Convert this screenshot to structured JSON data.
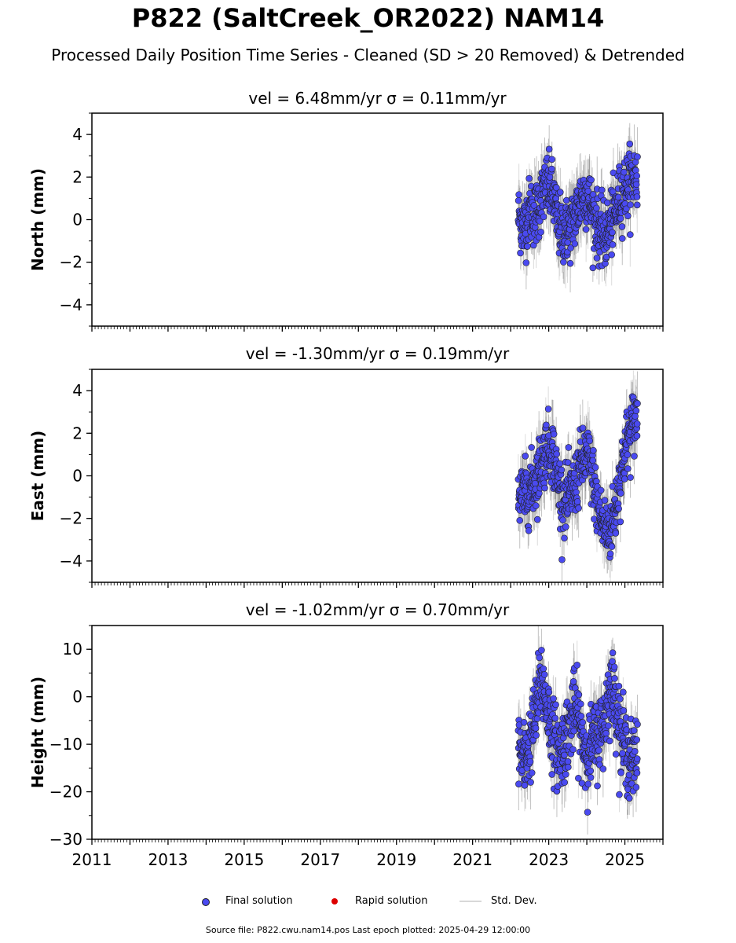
{
  "title": "P822 (SaltCreek_OR2022) NAM14",
  "subtitle": "Processed Daily Position Time Series - Cleaned (SD > 20 Removed) & Detrended",
  "legend": {
    "final": "Final solution",
    "rapid": "Rapid solution",
    "std": "Std. Dev."
  },
  "source_note": "Source file: P822.cwu.nam14.pos  Last epoch plotted: 2025-04-29 12:00:00",
  "colors": {
    "final_marker": "#4a4af0",
    "rapid_marker": "#dd0000",
    "std_dev_line": "#d8d8d8",
    "error_bar": "#777777"
  },
  "chart_data": [
    {
      "type": "scatter",
      "title": "vel = 6.48mm/yr   σ = 0.11mm/yr",
      "ylabel": "North (mm)",
      "xlim": [
        2011,
        2026
      ],
      "ylim": [
        -5,
        5
      ],
      "yticks": [
        -4,
        -2,
        0,
        2,
        4
      ],
      "xticks": [
        "2011",
        "2013",
        "2015",
        "2017",
        "2019",
        "2021",
        "2023",
        "2025"
      ],
      "x_range": [
        2022.2,
        2025.33
      ],
      "series": [
        {
          "x": [
            2022.2,
            2022.35,
            2022.5,
            2022.65,
            2022.8,
            2022.95,
            2023.1,
            2023.25,
            2023.4,
            2023.55,
            2023.7,
            2023.85,
            2024.0,
            2024.15,
            2024.3,
            2024.45,
            2024.6,
            2024.75,
            2024.9,
            2025.05,
            2025.2,
            2025.33
          ],
          "y": [
            0.2,
            -0.4,
            0.5,
            0.2,
            1.0,
            1.6,
            1.2,
            -0.2,
            -0.6,
            -0.4,
            0.2,
            1.0,
            1.2,
            0.4,
            -0.4,
            -0.8,
            -0.4,
            0.4,
            1.2,
            1.6,
            2.0,
            2.0
          ]
        }
      ]
    },
    {
      "type": "scatter",
      "title": "vel = -1.30mm/yr   σ = 0.19mm/yr",
      "ylabel": "East (mm)",
      "xlim": [
        2011,
        2026
      ],
      "ylim": [
        -5,
        5
      ],
      "yticks": [
        -4,
        -2,
        0,
        2,
        4
      ],
      "xticks": [
        "2011",
        "2013",
        "2015",
        "2017",
        "2019",
        "2021",
        "2023",
        "2025"
      ],
      "x_range": [
        2022.2,
        2025.33
      ],
      "series": [
        {
          "x": [
            2022.2,
            2022.35,
            2022.5,
            2022.65,
            2022.8,
            2022.95,
            2023.1,
            2023.25,
            2023.4,
            2023.55,
            2023.7,
            2023.85,
            2024.0,
            2024.15,
            2024.3,
            2024.45,
            2024.6,
            2024.75,
            2024.9,
            2025.05,
            2025.2,
            2025.33
          ],
          "y": [
            -0.8,
            -1.0,
            -0.6,
            -0.2,
            0.6,
            1.4,
            1.2,
            -0.4,
            -1.2,
            -1.0,
            -0.4,
            0.6,
            1.0,
            0.0,
            -1.6,
            -2.4,
            -2.6,
            -1.6,
            0.2,
            1.6,
            2.4,
            2.8
          ]
        }
      ]
    },
    {
      "type": "scatter",
      "title": "vel = -1.02mm/yr   σ = 0.70mm/yr",
      "ylabel": "Height (mm)",
      "xlabel": "",
      "xlim": [
        2011,
        2026
      ],
      "ylim": [
        -30,
        15
      ],
      "yticks": [
        -30,
        -20,
        -10,
        0,
        10
      ],
      "xticks": [
        "2011",
        "2013",
        "2015",
        "2017",
        "2019",
        "2021",
        "2023",
        "2025"
      ],
      "x_range": [
        2022.2,
        2025.33
      ],
      "series": [
        {
          "x": [
            2022.2,
            2022.35,
            2022.5,
            2022.65,
            2022.8,
            2022.95,
            2023.1,
            2023.25,
            2023.4,
            2023.55,
            2023.7,
            2023.85,
            2024.0,
            2024.15,
            2024.3,
            2024.45,
            2024.6,
            2024.75,
            2024.9,
            2025.05,
            2025.2,
            2025.33
          ],
          "y": [
            -10,
            -14,
            -10,
            -4,
            4,
            -2,
            -8,
            -12,
            -10,
            -6,
            -2,
            -8,
            -12,
            -10,
            -8,
            -6,
            2,
            0,
            -8,
            -12,
            -14,
            -12
          ]
        }
      ]
    }
  ]
}
